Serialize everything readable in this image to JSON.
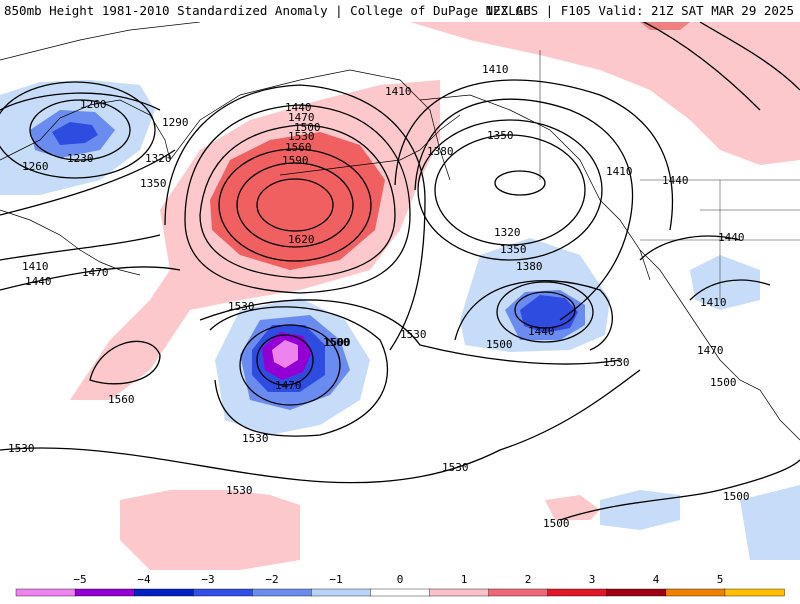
{
  "header": {
    "title": "850mb Height 1981-2010 Standardized Anomaly | College of DuPage NEXLAB",
    "valid": "12Z GFS | F105 Valid: 21Z SAT MAR 29 2025"
  },
  "map": {
    "contour_labels": [
      "1260",
      "1290",
      "1230",
      "1260",
      "1320",
      "1350",
      "1410",
      "1440",
      "1470",
      "1410",
      "1440",
      "1470",
      "1500",
      "1530",
      "1560",
      "1590",
      "1620",
      "1410",
      "1350",
      "1380",
      "1410",
      "1440",
      "1320",
      "1350",
      "1380",
      "1440",
      "1410",
      "1470",
      "1500",
      "1530",
      "1500",
      "1470",
      "1530",
      "1560",
      "1530",
      "1500",
      "1530",
      "1530",
      "1530",
      "1530",
      "1500",
      "1500",
      "1500",
      "1440"
    ]
  },
  "colorbar": {
    "labels": [
      "−5",
      "−4",
      "−3",
      "−2",
      "−1",
      "0",
      "1",
      "2",
      "3",
      "4",
      "5"
    ],
    "colors": [
      "#ee82ee",
      "#9400d3",
      "#0020c0",
      "#3050e8",
      "#6a8cf0",
      "#b8d4f8",
      "#ffffff",
      "#fcc0c8",
      "#f06878",
      "#e01828",
      "#a00010",
      "#f08000",
      "#ffc000"
    ]
  }
}
